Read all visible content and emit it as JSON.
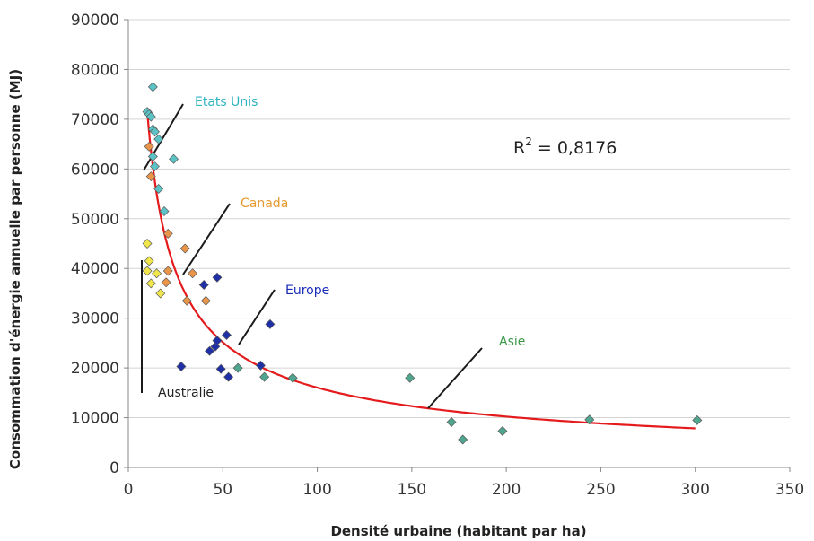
{
  "chart_data": {
    "type": "scatter",
    "title": "",
    "xlabel": "Densité urbaine (habitant par ha)",
    "ylabel": "Consommation d'énergie annuelle par personne (MJ)",
    "xlim": [
      0,
      350
    ],
    "ylim": [
      0,
      90000
    ],
    "x_ticks": [
      0,
      50,
      100,
      150,
      200,
      250,
      300,
      350
    ],
    "y_ticks": [
      0,
      10000,
      20000,
      30000,
      40000,
      50000,
      60000,
      70000,
      80000,
      90000
    ],
    "grid": "horizontal",
    "legend": "none",
    "marker": "diamond",
    "annotation": {
      "prefix": "R",
      "sup": "2",
      "suffix": " = 0,8176"
    },
    "trendline": {
      "type": "power",
      "a": 320000,
      "b": -0.65,
      "x_range": [
        10,
        300
      ],
      "color": "#e41a1c"
    },
    "series": [
      {
        "name": "Etats Unis",
        "color": "#5bc2c6",
        "label_color": "#2fb4c0",
        "points": [
          [
            10,
            71500
          ],
          [
            11,
            71000
          ],
          [
            12,
            70500
          ],
          [
            13,
            76500
          ],
          [
            13,
            68000
          ],
          [
            14,
            67500
          ],
          [
            13,
            62500
          ],
          [
            14,
            60500
          ],
          [
            16,
            66000
          ],
          [
            16,
            56000
          ],
          [
            19,
            51500
          ],
          [
            24,
            62000
          ]
        ]
      },
      {
        "name": "Canada",
        "color": "#e8954a",
        "label_color": "#e69a2e",
        "points": [
          [
            11,
            64500
          ],
          [
            12,
            58500
          ],
          [
            21,
            47000
          ],
          [
            30,
            44000
          ],
          [
            21,
            39500
          ],
          [
            20,
            37200
          ],
          [
            34,
            39000
          ],
          [
            41,
            33500
          ],
          [
            31,
            33500
          ]
        ]
      },
      {
        "name": "Europe",
        "color": "#1f2fa6",
        "label_color": "#1a2bb8",
        "points": [
          [
            40,
            36700
          ],
          [
            47,
            38200
          ],
          [
            28,
            20300
          ],
          [
            43,
            23400
          ],
          [
            46,
            24300
          ],
          [
            47,
            25500
          ],
          [
            52,
            26600
          ],
          [
            49,
            19800
          ],
          [
            53,
            18200
          ],
          [
            75,
            28800
          ],
          [
            70,
            20500
          ]
        ]
      },
      {
        "name": "Asie",
        "color": "#4fa58e",
        "label_color": "#3a9a4a",
        "points": [
          [
            58,
            20000
          ],
          [
            72,
            18200
          ],
          [
            87,
            18000
          ],
          [
            149,
            18000
          ],
          [
            171,
            9100
          ],
          [
            177,
            5600
          ],
          [
            198,
            7300
          ],
          [
            244,
            9600
          ],
          [
            301,
            9500
          ]
        ]
      },
      {
        "name": "Australie",
        "color": "#f0e54a",
        "label_color": "#222222",
        "points": [
          [
            10,
            45000
          ],
          [
            11,
            41500
          ],
          [
            12,
            37000
          ],
          [
            15,
            39000
          ],
          [
            17,
            35000
          ],
          [
            10,
            39500
          ]
        ]
      }
    ]
  }
}
